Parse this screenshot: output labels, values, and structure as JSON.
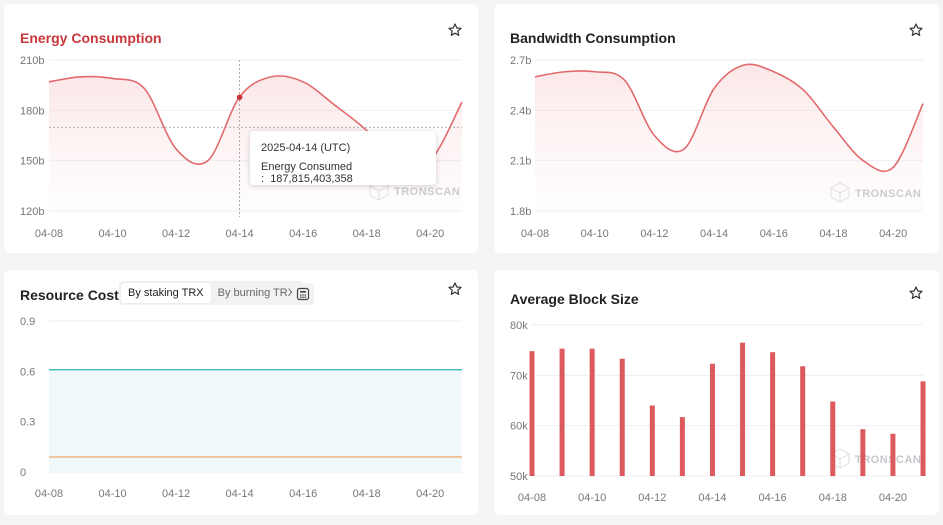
{
  "colors": {
    "accent": "#c9373a",
    "line": "#e26a6d",
    "bar": "#dc5a5d",
    "teal": "#42b8c2",
    "orange": "#f0b27a"
  },
  "watermark": "TRONSCAN",
  "cards": {
    "energy": {
      "title": "Energy Consumption",
      "favorite_icon": "star-icon"
    },
    "bandwidth": {
      "title": "Bandwidth Consumption",
      "favorite_icon": "star-icon"
    },
    "resource": {
      "title": "Resource Costs",
      "toggle_staking": "By staking TRX",
      "toggle_burning": "By burning TRX",
      "calculator_icon": "calculator-icon",
      "favorite_icon": "star-icon"
    },
    "block": {
      "title": "Average Block Size",
      "favorite_icon": "star-icon"
    }
  },
  "tooltip": {
    "date": "2025-04-14 (UTC)",
    "label": "Energy Consumed :",
    "value": "187,815,403,358"
  },
  "chart_data": [
    {
      "type": "area",
      "title": "Energy Consumption",
      "x": [
        "04-08",
        "04-09",
        "04-10",
        "04-11",
        "04-12",
        "04-13",
        "04-14",
        "04-15",
        "04-16",
        "04-17",
        "04-18",
        "04-19",
        "04-20",
        "04-21"
      ],
      "x_tick_labels": [
        "04-08",
        "04-10",
        "04-12",
        "04-14",
        "04-16",
        "04-18",
        "04-20"
      ],
      "y_tick_labels": [
        "120b",
        "150b",
        "180b",
        "210b"
      ],
      "ylim": [
        120,
        210
      ],
      "series": [
        {
          "values": [
            197,
            200,
            199,
            193,
            157,
            150,
            188,
            200,
            197,
            183,
            168,
            148,
            150,
            185
          ]
        }
      ],
      "highlight": {
        "x": "04-14",
        "y": 187.8
      }
    },
    {
      "type": "area",
      "title": "Bandwidth Consumption",
      "x": [
        "04-08",
        "04-09",
        "04-10",
        "04-11",
        "04-12",
        "04-13",
        "04-14",
        "04-15",
        "04-16",
        "04-17",
        "04-18",
        "04-19",
        "04-20",
        "04-21"
      ],
      "x_tick_labels": [
        "04-08",
        "04-10",
        "04-12",
        "04-14",
        "04-16",
        "04-18",
        "04-20"
      ],
      "y_tick_labels": [
        "1.8b",
        "2.1b",
        "2.4b",
        "2.7b"
      ],
      "ylim": [
        1.8,
        2.7
      ],
      "series": [
        {
          "values": [
            2.6,
            2.63,
            2.63,
            2.58,
            2.25,
            2.17,
            2.53,
            2.67,
            2.63,
            2.52,
            2.3,
            2.1,
            2.06,
            2.44
          ]
        }
      ]
    },
    {
      "type": "line",
      "title": "Resource Costs",
      "x": [
        "04-08",
        "04-09",
        "04-10",
        "04-11",
        "04-12",
        "04-13",
        "04-14",
        "04-15",
        "04-16",
        "04-17",
        "04-18",
        "04-19",
        "04-20",
        "04-21"
      ],
      "x_tick_labels": [
        "04-08",
        "04-10",
        "04-12",
        "04-14",
        "04-16",
        "04-18",
        "04-20"
      ],
      "y_tick_labels": [
        "0",
        "0.3",
        "0.6",
        "0.9"
      ],
      "ylim": [
        0,
        0.9
      ],
      "series": [
        {
          "values": [
            0.61,
            0.61,
            0.61,
            0.61,
            0.61,
            0.61,
            0.61,
            0.61,
            0.61,
            0.61,
            0.61,
            0.61,
            0.61,
            0.61
          ]
        },
        {
          "values": [
            0.09,
            0.09,
            0.09,
            0.09,
            0.09,
            0.09,
            0.09,
            0.09,
            0.09,
            0.09,
            0.09,
            0.09,
            0.09,
            0.09
          ]
        }
      ]
    },
    {
      "type": "bar",
      "title": "Average Block Size",
      "categories": [
        "04-08",
        "04-09",
        "04-10",
        "04-11",
        "04-12",
        "04-13",
        "04-14",
        "04-15",
        "04-16",
        "04-17",
        "04-18",
        "04-19",
        "04-20",
        "04-21"
      ],
      "x_tick_labels": [
        "04-08",
        "04-10",
        "04-12",
        "04-14",
        "04-16",
        "04-18",
        "04-20"
      ],
      "y_tick_labels": [
        "50k",
        "60k",
        "70k",
        "80k"
      ],
      "ylim": [
        50,
        80
      ],
      "values": [
        74.8,
        75.3,
        75.3,
        73.3,
        64.0,
        61.7,
        72.3,
        76.5,
        74.6,
        71.8,
        64.8,
        59.3,
        58.4,
        68.8
      ]
    }
  ]
}
